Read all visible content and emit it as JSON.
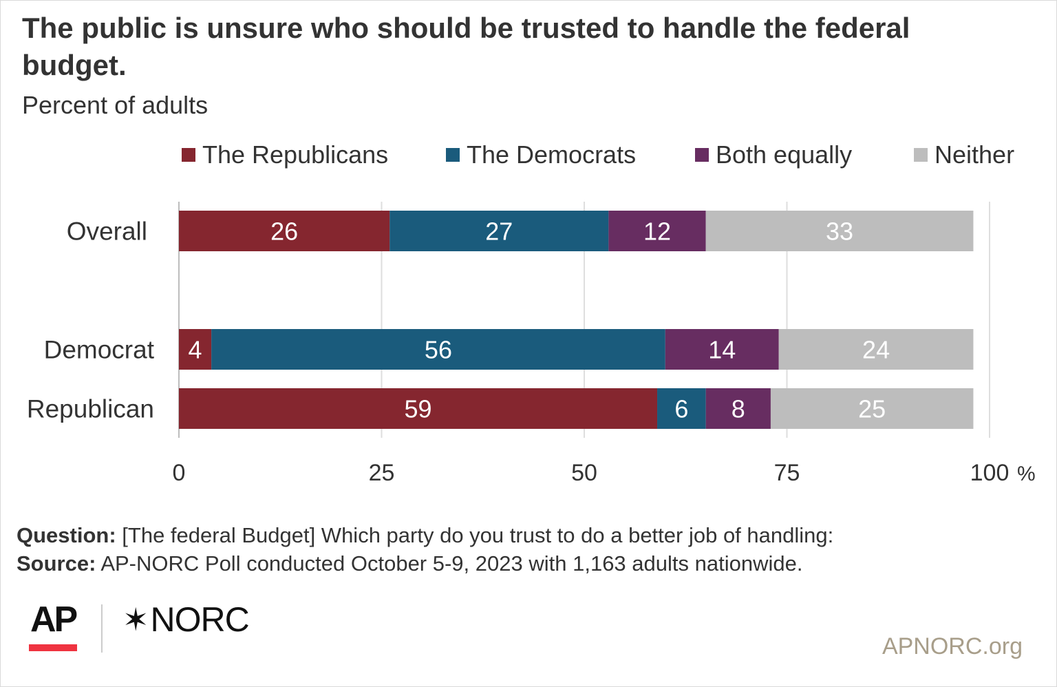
{
  "title": "The public is unsure who should be trusted to handle the federal budget.",
  "subtitle": "Percent of adults",
  "colors": {
    "republicans": "#85262f",
    "democrats": "#1a5b7c",
    "both": "#672d61",
    "neither": "#bdbdbd"
  },
  "chart_data": {
    "type": "bar",
    "orientation": "horizontal",
    "stacked": true,
    "categories": [
      "Overall",
      "Democrat",
      "Republican"
    ],
    "series": [
      {
        "name": "The Republicans",
        "color": "#85262f",
        "values": [
          26,
          4,
          59
        ]
      },
      {
        "name": "The Democrats",
        "color": "#1a5b7c",
        "values": [
          27,
          56,
          6
        ]
      },
      {
        "name": "Both equally",
        "color": "#672d61",
        "values": [
          12,
          14,
          8
        ]
      },
      {
        "name": "Neither",
        "color": "#bdbdbd",
        "values": [
          33,
          24,
          25
        ]
      }
    ],
    "xlim": [
      0,
      100
    ],
    "x_ticks": [
      "0",
      "25",
      "50",
      "75",
      "100"
    ],
    "x_unit": "%",
    "grid": true,
    "legend_position": "top"
  },
  "footer": {
    "question_label": "Question:",
    "question_text": " [The federal Budget] Which party do you trust to do a better job of handling:",
    "source_label": "Source:",
    "source_text": " AP-NORC Poll conducted October 5-9, 2023 with 1,163 adults nationwide.",
    "logo_ap": "AP",
    "logo_norc_mark": "✶",
    "logo_norc": "NORC",
    "site": "APNORC.org"
  }
}
